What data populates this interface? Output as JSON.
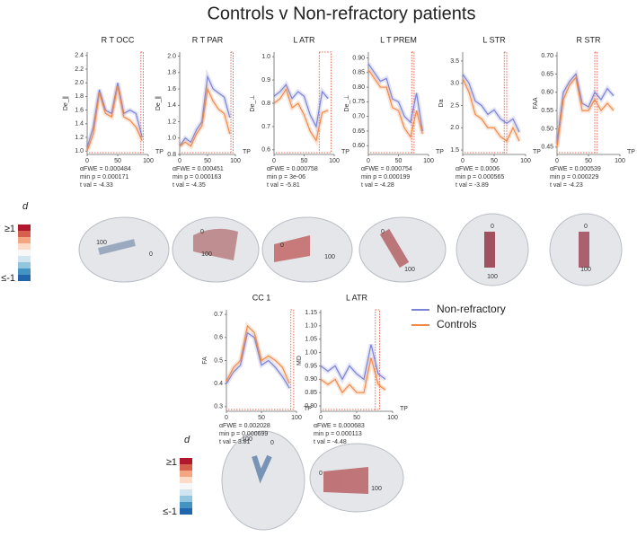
{
  "figure_title": "Controls v Non-refractory patients",
  "colorbar": {
    "label": "d",
    "top": "≥1",
    "bottom": "≤-1",
    "colors": [
      "#b2182b",
      "#d6604d",
      "#f4a582",
      "#fddbc7",
      "#f7f7f7",
      "#d1e5f0",
      "#92c5de",
      "#4393c3",
      "#2166ac"
    ]
  },
  "chart_data": [
    {
      "type": "line",
      "title": "R T OCC",
      "ylabel": "De_∥",
      "xlabel": "TP",
      "x": [
        0,
        10,
        20,
        30,
        40,
        50,
        60,
        70,
        80,
        90
      ],
      "xlim": [
        0,
        100
      ],
      "xticks": [
        0,
        50,
        100
      ],
      "ylim": [
        0.95,
        2.45
      ],
      "yticks": [
        {
          "value": 1,
          "label": "1.0"
        },
        1.2,
        1.4,
        1.6,
        1.8,
        {
          "value": 2,
          "label": "2.0"
        },
        2.2,
        2.4
      ],
      "series": [
        {
          "name": "Non-refractory",
          "color": "#7b83d6",
          "values": [
            1.05,
            1.35,
            1.9,
            1.6,
            1.55,
            2.0,
            1.55,
            1.6,
            1.55,
            1.2
          ]
        },
        {
          "name": "Controls",
          "color": "#f08a4b",
          "values": [
            1.0,
            1.25,
            1.85,
            1.55,
            1.5,
            1.95,
            1.5,
            1.45,
            1.35,
            1.15
          ]
        }
      ],
      "highlight": [
        88,
        92
      ],
      "stats": [
        "αFWE = 0.000484",
        "min p  = 0.000171",
        "t val   = -4.33"
      ],
      "annotations": [
        "100",
        "0"
      ]
    },
    {
      "type": "line",
      "title": "R T PAR",
      "ylabel": "De_∥",
      "xlabel": "TP",
      "x": [
        0,
        10,
        20,
        30,
        40,
        50,
        60,
        70,
        80,
        90
      ],
      "xlim": [
        0,
        100
      ],
      "xticks": [
        0,
        50,
        100
      ],
      "ylim": [
        0.8,
        2.05
      ],
      "yticks": [
        0.8,
        {
          "value": 1,
          "label": "1.0"
        },
        1.2,
        1.4,
        1.6,
        1.8,
        {
          "value": 2,
          "label": "2.0"
        }
      ],
      "series": [
        {
          "name": "Non-refractory",
          "color": "#7b83d6",
          "values": [
            0.9,
            1.0,
            0.95,
            1.1,
            1.2,
            1.75,
            1.6,
            1.55,
            1.5,
            1.25
          ]
        },
        {
          "name": "Controls",
          "color": "#f08a4b",
          "values": [
            0.9,
            0.95,
            0.9,
            1.05,
            1.15,
            1.6,
            1.45,
            1.35,
            1.3,
            1.05
          ]
        }
      ],
      "highlight": [
        92,
        96
      ],
      "stats": [
        "αFWE = 0.000451",
        "min p  = 0.000163",
        "t val   = -4.35"
      ],
      "annotations": [
        "0",
        "100"
      ]
    },
    {
      "type": "line",
      "title": "L ATR",
      "ylabel": "De_⊥",
      "xlabel": "TP",
      "x": [
        0,
        10,
        20,
        30,
        40,
        50,
        60,
        70,
        80,
        90
      ],
      "xlim": [
        0,
        100
      ],
      "xticks": [
        0,
        50,
        100
      ],
      "ylim": [
        0.58,
        1.02
      ],
      "yticks": [
        0.6,
        0.7,
        0.8,
        0.9,
        {
          "value": 1,
          "label": "1.0"
        }
      ],
      "series": [
        {
          "name": "Non-refractory",
          "color": "#7b83d6",
          "values": [
            0.83,
            0.85,
            0.88,
            0.82,
            0.85,
            0.83,
            0.75,
            0.7,
            0.85,
            0.82
          ]
        },
        {
          "name": "Controls",
          "color": "#f08a4b",
          "values": [
            0.8,
            0.82,
            0.86,
            0.78,
            0.8,
            0.75,
            0.68,
            0.64,
            0.76,
            0.77
          ]
        }
      ],
      "highlight": [
        75,
        95
      ],
      "stats": [
        "αFWE = 0.000758",
        "min p  = 3e-06",
        "t val   = -5.81"
      ],
      "annotations": [
        "0",
        "100"
      ]
    },
    {
      "type": "line",
      "title": "L T PREM",
      "ylabel": "De_⊥",
      "xlabel": "TP",
      "x": [
        0,
        10,
        20,
        30,
        40,
        50,
        60,
        70,
        80,
        90
      ],
      "xlim": [
        0,
        100
      ],
      "xticks": [
        0,
        50,
        100
      ],
      "ylim": [
        0.57,
        0.92
      ],
      "yticks": [
        {
          "value": 0.6,
          "label": "0.60"
        },
        0.65,
        {
          "value": 0.7,
          "label": "0.70"
        },
        0.75,
        {
          "value": 0.8,
          "label": "0.80"
        },
        0.85,
        {
          "value": 0.9,
          "label": "0.90"
        }
      ],
      "series": [
        {
          "name": "Non-refractory",
          "color": "#7b83d6",
          "values": [
            0.88,
            0.85,
            0.82,
            0.83,
            0.76,
            0.75,
            0.7,
            0.68,
            0.78,
            0.65
          ]
        },
        {
          "name": "Controls",
          "color": "#f08a4b",
          "values": [
            0.86,
            0.83,
            0.8,
            0.8,
            0.73,
            0.72,
            0.66,
            0.63,
            0.72,
            0.64
          ]
        }
      ],
      "highlight": [
        72,
        76
      ],
      "stats": [
        "αFWE = 0.000754",
        "min p  = 0.000199",
        "t val   = -4.28"
      ],
      "annotations": [
        "0",
        "100"
      ]
    },
    {
      "type": "line",
      "title": "L STR",
      "ylabel": "Da",
      "xlabel": "TP",
      "x": [
        0,
        10,
        20,
        30,
        40,
        50,
        60,
        70,
        80,
        90
      ],
      "xlim": [
        0,
        100
      ],
      "xticks": [
        0,
        50,
        100
      ],
      "ylim": [
        1.4,
        3.7
      ],
      "yticks": [
        1.5,
        {
          "value": 2,
          "label": "2.0"
        },
        2.5,
        {
          "value": 3,
          "label": "3.0"
        },
        3.5
      ],
      "series": [
        {
          "name": "Non-refractory",
          "color": "#7b83d6",
          "values": [
            3.2,
            3.0,
            2.6,
            2.5,
            2.3,
            2.4,
            2.2,
            2.1,
            2.2,
            1.9
          ]
        },
        {
          "name": "Controls",
          "color": "#f08a4b",
          "values": [
            3.1,
            2.8,
            2.3,
            2.2,
            2.0,
            2.0,
            1.8,
            1.7,
            2.0,
            1.7
          ]
        }
      ],
      "highlight": [
        66,
        70
      ],
      "stats": [
        "αFWE = 0.0006",
        "min p  = 0.000565",
        "t val   = -3.89"
      ],
      "annotations": [
        "0",
        "100"
      ]
    },
    {
      "type": "line",
      "title": "R STR",
      "ylabel": "FAA",
      "xlabel": "TP",
      "x": [
        0,
        10,
        20,
        30,
        40,
        50,
        60,
        70,
        80,
        90
      ],
      "xlim": [
        0,
        100
      ],
      "xticks": [
        0,
        50,
        100
      ],
      "ylim": [
        0.43,
        0.71
      ],
      "yticks": [
        0.45,
        {
          "value": 0.5,
          "label": "0.50"
        },
        0.55,
        {
          "value": 0.6,
          "label": "0.60"
        },
        0.65,
        {
          "value": 0.7,
          "label": "0.70"
        }
      ],
      "series": [
        {
          "name": "Non-refractory",
          "color": "#7b83d6",
          "values": [
            0.46,
            0.6,
            0.63,
            0.65,
            0.57,
            0.56,
            0.6,
            0.58,
            0.61,
            0.59
          ]
        },
        {
          "name": "Controls",
          "color": "#f08a4b",
          "values": [
            0.45,
            0.58,
            0.62,
            0.64,
            0.55,
            0.55,
            0.58,
            0.55,
            0.57,
            0.55
          ]
        }
      ],
      "highlight": [
        60,
        64
      ],
      "stats": [
        "αFWE = 0.000539",
        "min p  = 0.000229",
        "t val   = -4.23"
      ],
      "annotations": [
        "0",
        "100"
      ]
    },
    {
      "type": "line",
      "title": "CC 1",
      "ylabel": "FA",
      "xlabel": "TP",
      "x": [
        0,
        10,
        20,
        30,
        40,
        50,
        60,
        70,
        80,
        90
      ],
      "xlim": [
        0,
        100
      ],
      "xticks": [
        0,
        50,
        100
      ],
      "ylim": [
        0.28,
        0.72
      ],
      "yticks": [
        0.3,
        0.4,
        0.5,
        0.6,
        0.7
      ],
      "series": [
        {
          "name": "Non-refractory",
          "color": "#7b83d6",
          "values": [
            0.4,
            0.45,
            0.48,
            0.62,
            0.6,
            0.48,
            0.5,
            0.47,
            0.43,
            0.38
          ]
        },
        {
          "name": "Controls",
          "color": "#f08a4b",
          "values": [
            0.41,
            0.47,
            0.5,
            0.65,
            0.62,
            0.5,
            0.52,
            0.5,
            0.47,
            0.4
          ]
        }
      ],
      "highlight": [
        92,
        96
      ],
      "stats": [
        "αFWE = 0.002028",
        "min p  = 0.000699",
        "t val   = 3.81"
      ],
      "annotations": [
        "100",
        "0"
      ]
    },
    {
      "type": "line",
      "title": "L ATR",
      "ylabel": "MD",
      "xlabel": "TP",
      "x": [
        0,
        10,
        20,
        30,
        40,
        50,
        60,
        70,
        80,
        90
      ],
      "xlim": [
        0,
        100
      ],
      "xticks": [
        0,
        50,
        100
      ],
      "ylim": [
        0.78,
        1.16
      ],
      "yticks": [
        {
          "value": 0.8,
          "label": "0.80"
        },
        0.85,
        {
          "value": 0.9,
          "label": "0.90"
        },
        0.95,
        {
          "value": 1,
          "label": "1.00"
        },
        1.05,
        {
          "value": 1.1,
          "label": "1.10"
        },
        1.15
      ],
      "series": [
        {
          "name": "Non-refractory",
          "color": "#7b83d6",
          "values": [
            0.95,
            0.93,
            0.95,
            0.9,
            0.95,
            0.92,
            0.9,
            1.03,
            0.92,
            0.9
          ]
        },
        {
          "name": "Controls",
          "color": "#f08a4b",
          "values": [
            0.9,
            0.88,
            0.9,
            0.85,
            0.88,
            0.85,
            0.85,
            0.98,
            0.88,
            0.86
          ]
        }
      ],
      "highlight": [
        76,
        82
      ],
      "stats": [
        "αFWE = 0.000683",
        "min p  = 0.000113",
        "t val   = -4.48"
      ],
      "annotations": [
        "0",
        "100"
      ]
    }
  ]
}
